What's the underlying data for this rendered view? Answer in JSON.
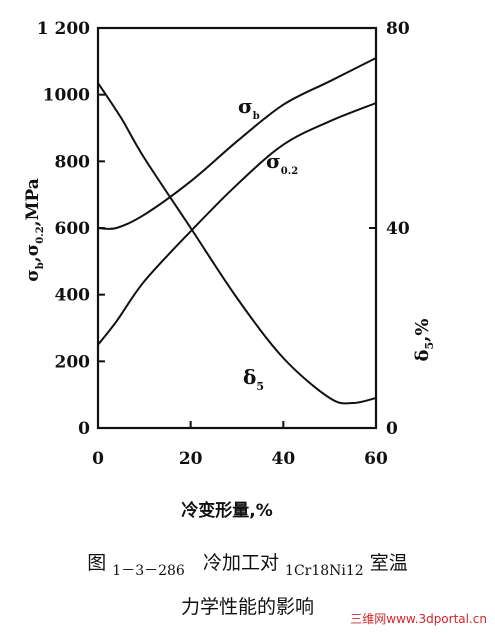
{
  "chart_data": {
    "type": "line",
    "xlabel": "冷变形量,%",
    "x_ticks": [
      "0",
      "20",
      "40",
      "60"
    ],
    "xlim": [
      0,
      60
    ],
    "ylabel_left": "σb,σ0.2,MPa",
    "ylim_left": [
      0,
      1200
    ],
    "left_ticks": [
      "0",
      "200",
      "400",
      "600",
      "800",
      "1000",
      "1 200"
    ],
    "ylabel_right": "δ5,%",
    "ylim_right": [
      0,
      80
    ],
    "right_ticks": [
      "0",
      "40",
      "80"
    ],
    "right_tick_values": [
      0,
      40,
      80
    ],
    "series": [
      {
        "name": "σb",
        "axis": "left",
        "x": [
          0,
          4,
          10,
          20,
          30,
          40,
          50,
          60
        ],
        "y": [
          600,
          600,
          640,
          740,
          860,
          970,
          1040,
          1110
        ]
      },
      {
        "name": "σ0.2",
        "axis": "left",
        "x": [
          0,
          4,
          10,
          20,
          30,
          40,
          50,
          60
        ],
        "y": [
          250,
          320,
          440,
          590,
          730,
          850,
          920,
          975
        ]
      },
      {
        "name": "δ5",
        "axis": "right",
        "x": [
          0,
          5,
          10,
          20,
          30,
          40,
          50,
          55,
          60
        ],
        "y": [
          69,
          62,
          54,
          40,
          26,
          14,
          6,
          5,
          6
        ]
      }
    ]
  },
  "caption": {
    "fig_prefix": "图",
    "fig_number": "1－3－286",
    "text_a": "冷加工对",
    "alloy": "1Cr18Ni12",
    "text_b": "室温",
    "line2": "力学性能的影响"
  },
  "watermark": "三维网www.3dportal.cn"
}
